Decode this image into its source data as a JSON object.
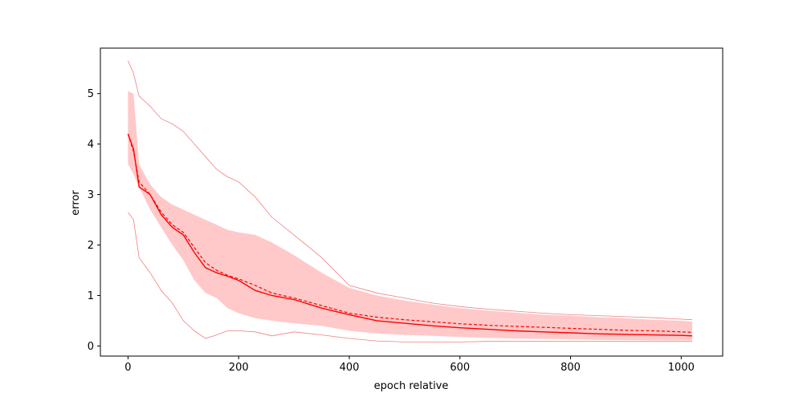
{
  "chart_data": {
    "type": "line",
    "title": "",
    "xlabel": "epoch relative",
    "ylabel": "error",
    "xlim": [
      -50,
      1075
    ],
    "ylim": [
      -0.2,
      5.9
    ],
    "xticks": [
      0,
      200,
      400,
      600,
      800,
      1000
    ],
    "yticks": [
      0,
      1,
      2,
      3,
      4,
      5
    ],
    "grid": false,
    "legend": "none",
    "colors": {
      "line": "#ff0000",
      "band": "#ffc9c9",
      "envelope": "#f08080"
    },
    "x": [
      0,
      10,
      20,
      40,
      60,
      80,
      100,
      120,
      140,
      160,
      180,
      200,
      230,
      260,
      300,
      350,
      400,
      450,
      500,
      550,
      600,
      650,
      700,
      750,
      800,
      850,
      900,
      950,
      1000,
      1020
    ],
    "series": [
      {
        "role": "mean",
        "style": "solid",
        "values": [
          4.2,
          3.9,
          3.15,
          3.0,
          2.6,
          2.35,
          2.2,
          1.85,
          1.55,
          1.45,
          1.38,
          1.3,
          1.1,
          1.0,
          0.92,
          0.75,
          0.62,
          0.5,
          0.45,
          0.4,
          0.36,
          0.33,
          0.3,
          0.28,
          0.26,
          0.24,
          0.23,
          0.22,
          0.21,
          0.2
        ]
      },
      {
        "role": "median",
        "style": "dashed",
        "values": [
          4.2,
          3.85,
          3.25,
          3.0,
          2.65,
          2.4,
          2.25,
          1.95,
          1.65,
          1.5,
          1.4,
          1.33,
          1.2,
          1.05,
          0.95,
          0.8,
          0.65,
          0.57,
          0.52,
          0.48,
          0.44,
          0.41,
          0.39,
          0.37,
          0.35,
          0.33,
          0.31,
          0.3,
          0.28,
          0.27
        ]
      },
      {
        "role": "band-upper",
        "style": "fill",
        "values": [
          5.05,
          5.0,
          3.6,
          3.2,
          2.95,
          2.8,
          2.7,
          2.6,
          2.5,
          2.4,
          2.3,
          2.25,
          2.2,
          2.05,
          1.8,
          1.45,
          1.15,
          1.0,
          0.9,
          0.82,
          0.75,
          0.7,
          0.66,
          0.62,
          0.6,
          0.57,
          0.55,
          0.52,
          0.5,
          0.48
        ]
      },
      {
        "role": "band-lower",
        "style": "fill",
        "values": [
          3.6,
          3.4,
          3.15,
          2.7,
          2.35,
          2.0,
          1.7,
          1.3,
          1.05,
          0.95,
          0.75,
          0.65,
          0.55,
          0.5,
          0.45,
          0.4,
          0.3,
          0.25,
          0.22,
          0.2,
          0.18,
          0.16,
          0.15,
          0.14,
          0.13,
          0.12,
          0.12,
          0.11,
          0.11,
          0.11
        ]
      },
      {
        "role": "max",
        "style": "thin",
        "values": [
          5.65,
          5.4,
          4.95,
          4.75,
          4.5,
          4.4,
          4.25,
          4.0,
          3.75,
          3.5,
          3.35,
          3.25,
          2.95,
          2.55,
          2.2,
          1.75,
          1.2,
          1.05,
          0.95,
          0.85,
          0.78,
          0.73,
          0.69,
          0.65,
          0.62,
          0.6,
          0.58,
          0.56,
          0.53,
          0.52
        ]
      },
      {
        "role": "min",
        "style": "thin",
        "values": [
          2.65,
          2.5,
          1.75,
          1.45,
          1.1,
          0.85,
          0.5,
          0.3,
          0.15,
          0.22,
          0.3,
          0.3,
          0.28,
          0.2,
          0.28,
          0.22,
          0.15,
          0.1,
          0.08,
          0.08,
          0.08,
          0.09,
          0.09,
          0.09,
          0.09,
          0.09,
          0.09,
          0.09,
          0.09,
          0.09
        ]
      }
    ]
  }
}
